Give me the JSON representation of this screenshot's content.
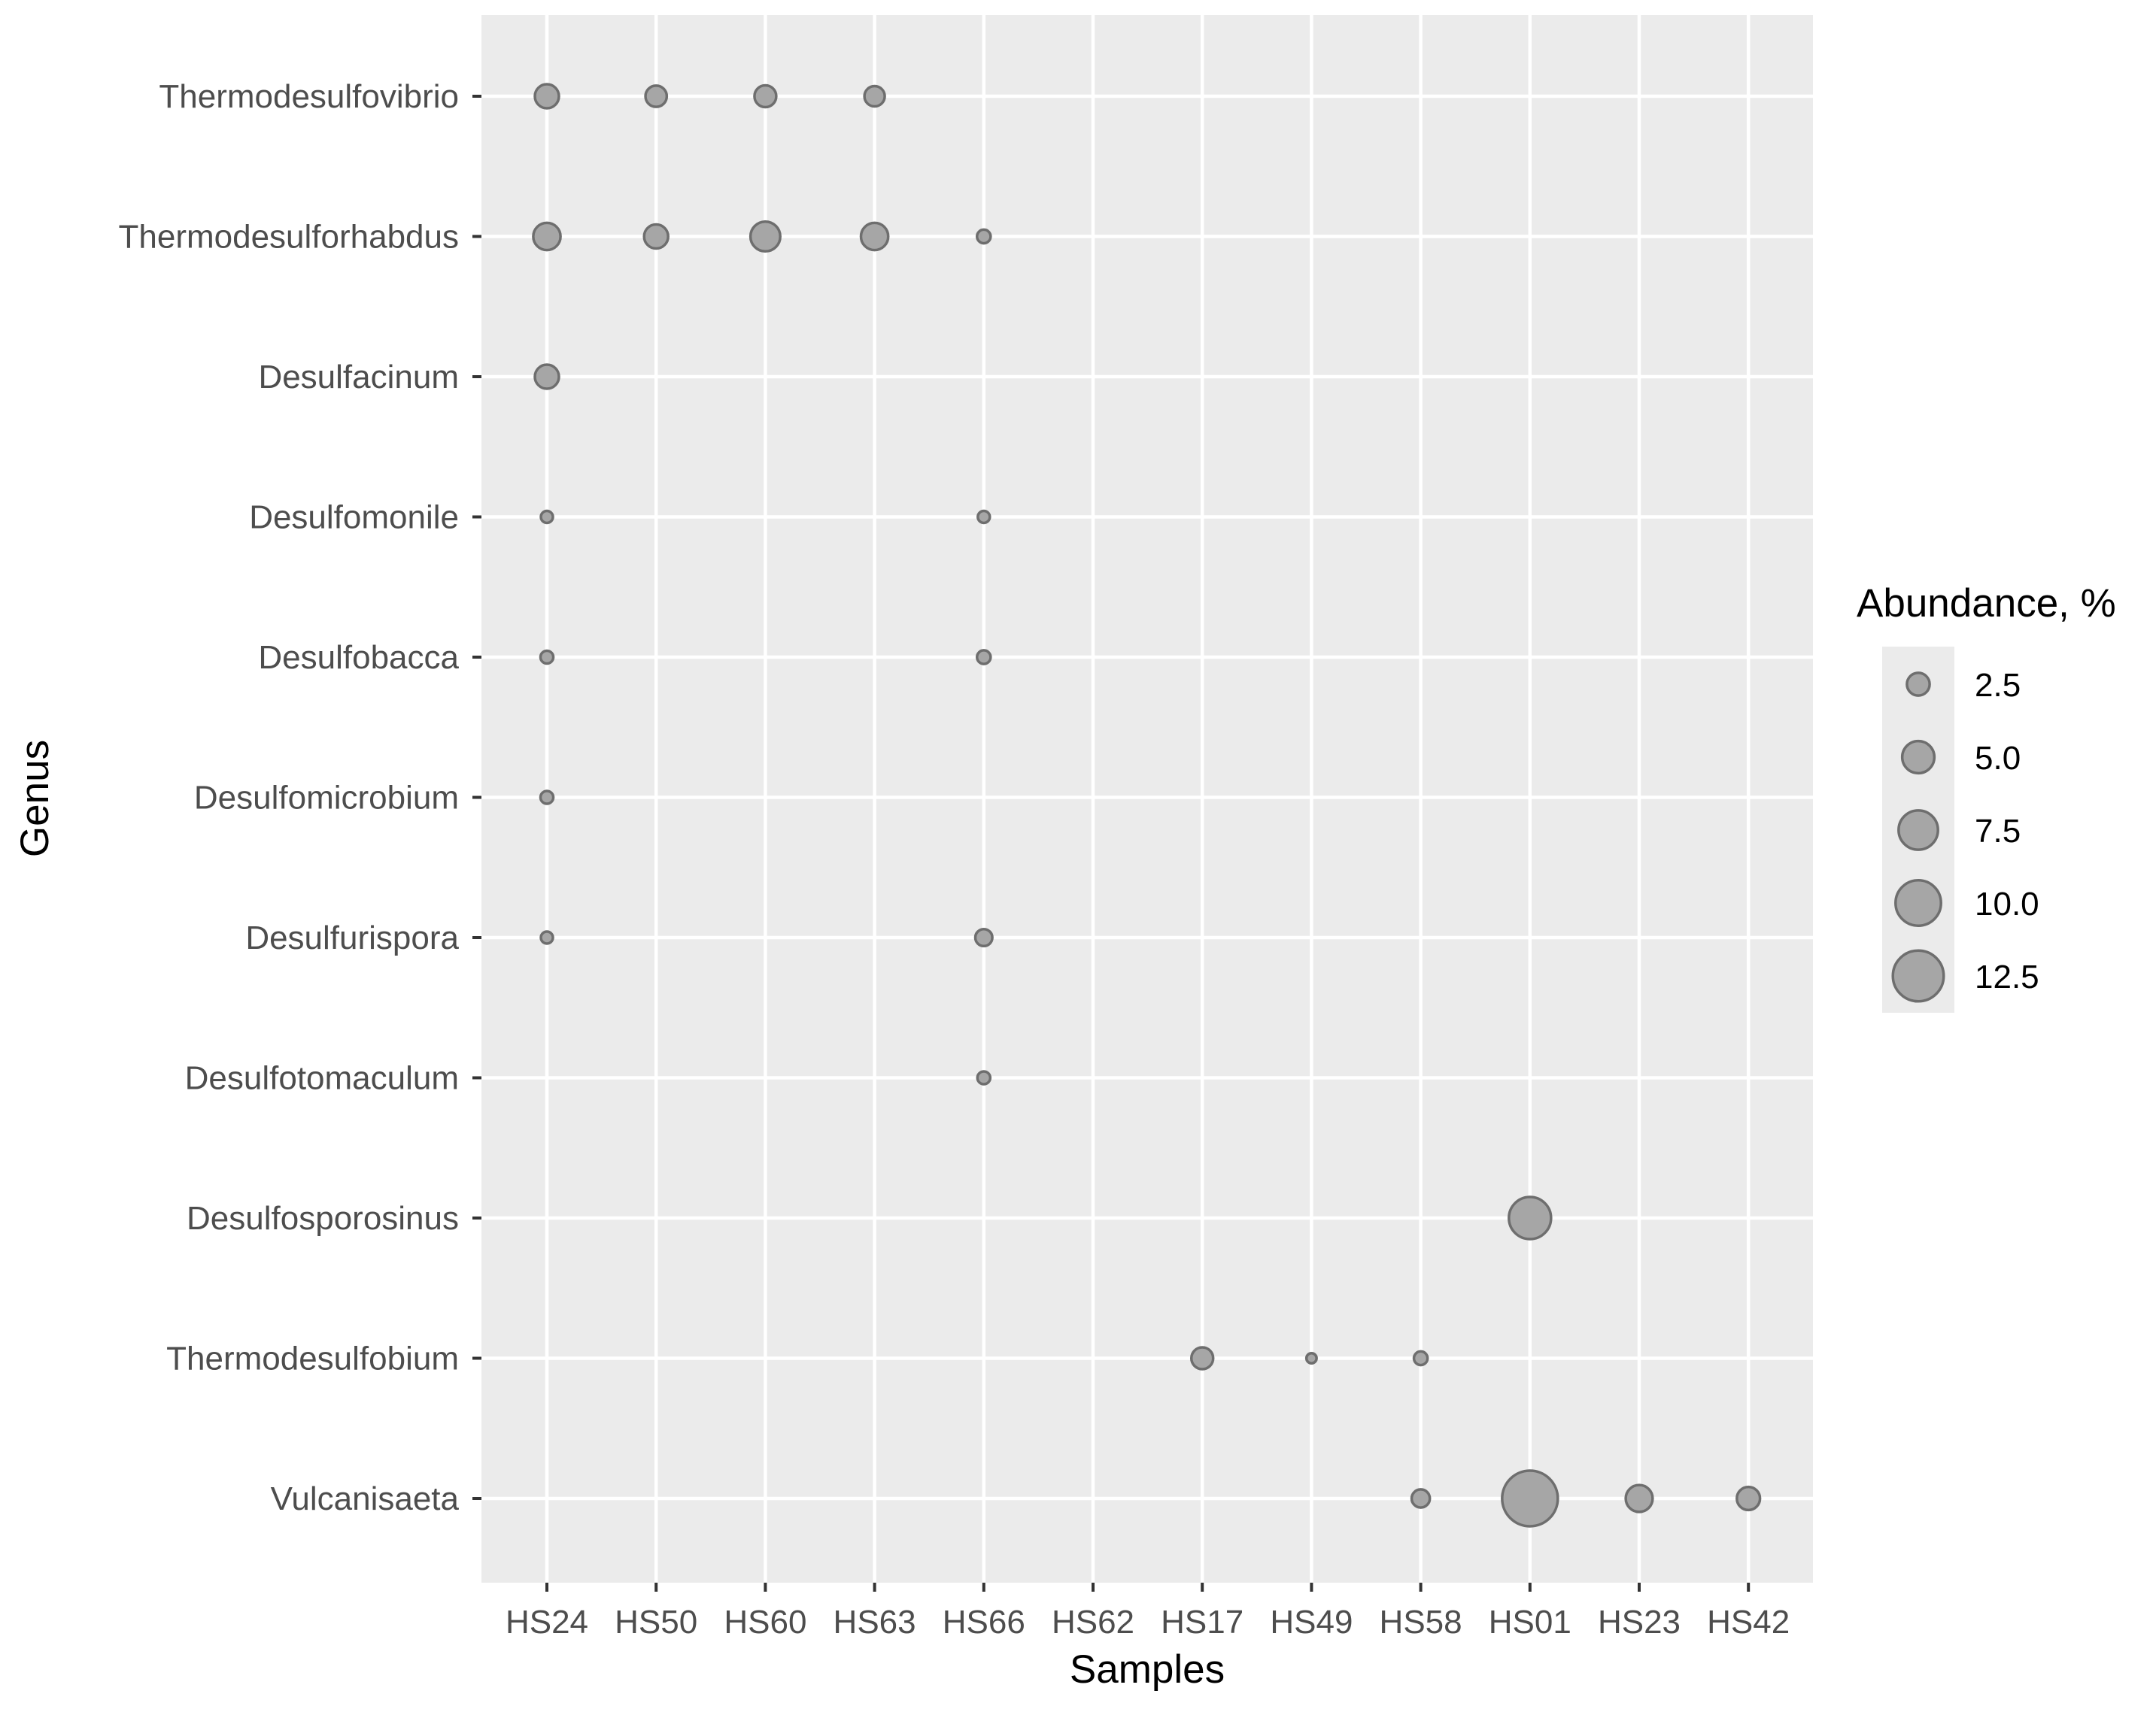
{
  "chart_data": {
    "type": "scatter",
    "subtype": "bubble",
    "xlabel": "Samples",
    "ylabel": "Genus",
    "x_categories": [
      "HS24",
      "HS50",
      "HS60",
      "HS63",
      "HS66",
      "HS62",
      "HS17",
      "HS49",
      "HS58",
      "HS01",
      "HS23",
      "HS42"
    ],
    "y_categories": [
      "Thermodesulfovibrio",
      "Thermodesulforhabdus",
      "Desulfacinum",
      "Desulfomonile",
      "Desulfobacca",
      "Desulfomicrobium",
      "Desulfurispora",
      "Desulfotomaculum",
      "Desulfosporosinus",
      "Thermodesulfobium",
      "Vulcanisaeta"
    ],
    "size_legend": {
      "title": "Abundance, %",
      "values": [
        2.5,
        5.0,
        7.5,
        10.0,
        12.5
      ],
      "labels": [
        "2.5",
        "5.0",
        "7.5",
        "10.0",
        "12.5"
      ]
    },
    "points": [
      {
        "sample": "HS24",
        "genus": "Thermodesulfovibrio",
        "abundance": 2.8
      },
      {
        "sample": "HS50",
        "genus": "Thermodesulfovibrio",
        "abundance": 2.2
      },
      {
        "sample": "HS60",
        "genus": "Thermodesulfovibrio",
        "abundance": 2.3
      },
      {
        "sample": "HS63",
        "genus": "Thermodesulfovibrio",
        "abundance": 2.0
      },
      {
        "sample": "HS24",
        "genus": "Thermodesulforhabdus",
        "abundance": 3.6
      },
      {
        "sample": "HS50",
        "genus": "Thermodesulforhabdus",
        "abundance": 2.8
      },
      {
        "sample": "HS60",
        "genus": "Thermodesulforhabdus",
        "abundance": 4.3
      },
      {
        "sample": "HS63",
        "genus": "Thermodesulforhabdus",
        "abundance": 3.6
      },
      {
        "sample": "HS66",
        "genus": "Thermodesulforhabdus",
        "abundance": 0.9
      },
      {
        "sample": "HS24",
        "genus": "Desulfacinum",
        "abundance": 2.8
      },
      {
        "sample": "HS24",
        "genus": "Desulfomonile",
        "abundance": 0.7
      },
      {
        "sample": "HS66",
        "genus": "Desulfomonile",
        "abundance": 0.7
      },
      {
        "sample": "HS24",
        "genus": "Desulfobacca",
        "abundance": 0.8
      },
      {
        "sample": "HS66",
        "genus": "Desulfobacca",
        "abundance": 0.9
      },
      {
        "sample": "HS24",
        "genus": "Desulfomicrobium",
        "abundance": 0.8
      },
      {
        "sample": "HS24",
        "genus": "Desulfurispora",
        "abundance": 0.7
      },
      {
        "sample": "HS66",
        "genus": "Desulfurispora",
        "abundance": 1.4
      },
      {
        "sample": "HS66",
        "genus": "Desulfotomaculum",
        "abundance": 0.8
      },
      {
        "sample": "HS01",
        "genus": "Desulfosporosinus",
        "abundance": 8.6
      },
      {
        "sample": "HS17",
        "genus": "Thermodesulfobium",
        "abundance": 2.3
      },
      {
        "sample": "HS49",
        "genus": "Thermodesulfobium",
        "abundance": 0.5
      },
      {
        "sample": "HS58",
        "genus": "Thermodesulfobium",
        "abundance": 0.9
      },
      {
        "sample": "HS58",
        "genus": "Vulcanisaeta",
        "abundance": 1.6
      },
      {
        "sample": "HS01",
        "genus": "Vulcanisaeta",
        "abundance": 15.0
      },
      {
        "sample": "HS23",
        "genus": "Vulcanisaeta",
        "abundance": 3.5
      },
      {
        "sample": "HS42",
        "genus": "Vulcanisaeta",
        "abundance": 2.6
      }
    ],
    "grid": true,
    "legend_position": "right"
  },
  "colors": {
    "panel_background": "#ebebeb",
    "grid": "#ffffff",
    "bubble_fill": "#a6a6a6",
    "bubble_stroke": "#6e6e6e",
    "tick_text": "#4d4d4d",
    "title_text": "#000000"
  }
}
